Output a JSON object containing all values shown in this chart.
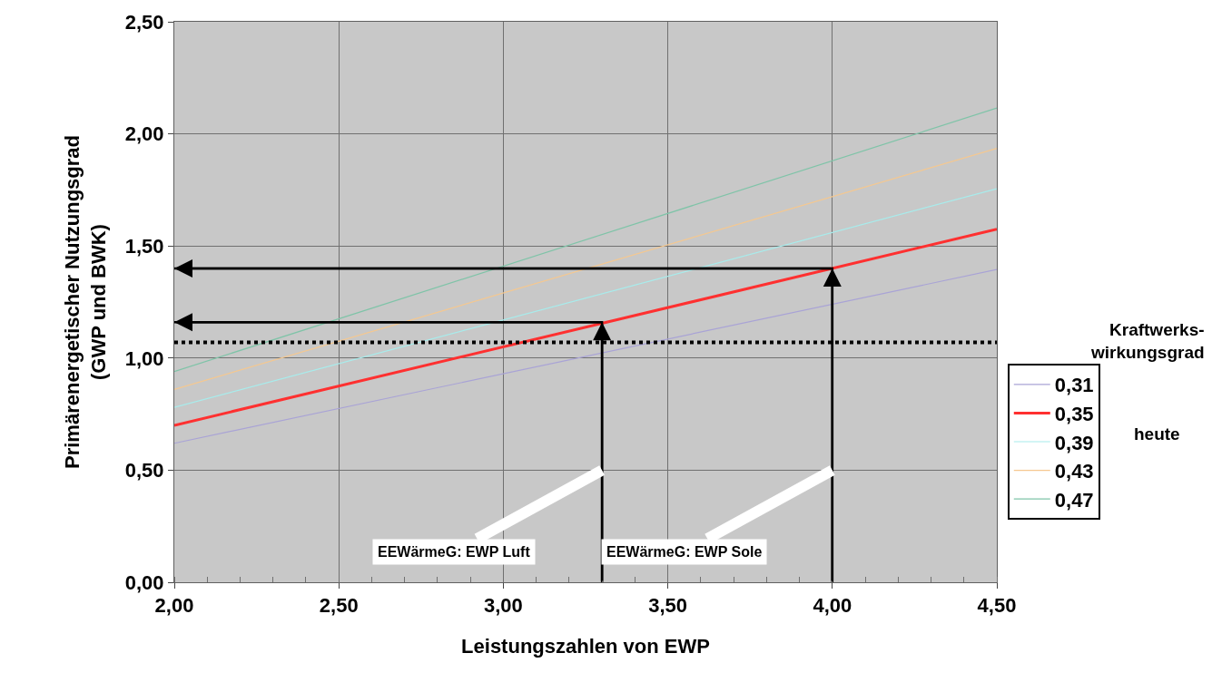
{
  "chart_data": {
    "type": "line",
    "xlabel": "Leistungszahlen von EWP",
    "ylabel": "Primärenergetischer Nutzungsgrad\n(GWP und BWK)",
    "legend_title": "Kraftwerks-wirkungsgrad",
    "x": [
      2.0,
      4.5
    ],
    "series": [
      {
        "name": "0,31",
        "color": "#a9a3d6",
        "values": [
          0.62,
          1.395
        ]
      },
      {
        "name": "0,35",
        "color": "#ff3030",
        "values": [
          0.7,
          1.575
        ]
      },
      {
        "name": "0,39",
        "color": "#a8ecec",
        "values": [
          0.78,
          1.755
        ]
      },
      {
        "name": "0,43",
        "color": "#f5c890",
        "values": [
          0.86,
          1.935
        ]
      },
      {
        "name": "0,47",
        "color": "#7fc4a8",
        "values": [
          0.94,
          2.115
        ]
      },
      {
        "color": "#000000",
        "x": [
          3.3,
          3.3,
          2.0
        ],
        "values": [
          0,
          1.16,
          1.16
        ]
      },
      {
        "color": "#000000",
        "x": [
          4.0,
          4.0,
          2.0
        ],
        "values": [
          0,
          1.4,
          1.4
        ]
      }
    ],
    "xlim": [
      2.0,
      4.5
    ],
    "xticks": [
      {
        "value": 2.0,
        "label": "2,00"
      },
      {
        "value": 2.5,
        "label": "2,50"
      },
      {
        "value": 3.0,
        "label": "3,00"
      },
      {
        "value": 3.5,
        "label": "3,50"
      },
      {
        "value": 4.0,
        "label": "4,00"
      },
      {
        "value": 4.5,
        "label": "4,50"
      }
    ],
    "ylim": [
      0,
      2.5
    ],
    "yticks": [
      {
        "value": 0,
        "label": "0,00"
      },
      {
        "value": 0.5,
        "label": "0,50"
      },
      {
        "value": 1.0,
        "label": "1,00"
      },
      {
        "value": 1.5,
        "label": "1,50"
      },
      {
        "value": 2.0,
        "label": "2,00"
      },
      {
        "value": 2.5,
        "label": "2,50"
      }
    ],
    "ref_lines": [
      {
        "axis": "y",
        "value": 1.07,
        "color": "#000000",
        "line_style": "dotted"
      }
    ],
    "annotations": [
      {
        "text": "EEWärmeG: EWP Luft",
        "x": 3.3,
        "y": 0.5
      },
      {
        "text": "EEWärmeG: EWP Sole",
        "x": 4.0,
        "y": 0.5
      },
      "heute"
    ],
    "grid": true,
    "legend": "right",
    "marker": "none",
    "line_style": "solid"
  }
}
